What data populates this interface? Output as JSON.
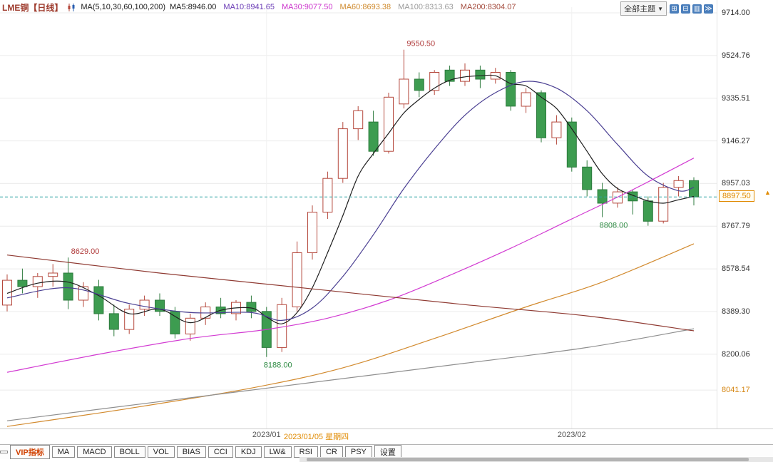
{
  "header": {
    "symbol": "LME铜【日线】",
    "ma_group": "MA(5,10,30,60,100,200)",
    "ma_items": [
      {
        "text": "MA5:8946.00",
        "color": "#1a1a1a"
      },
      {
        "text": "MA10:8941.65",
        "color": "#6a3bb5"
      },
      {
        "text": "MA30:9077.50",
        "color": "#cc33cc"
      },
      {
        "text": "MA60:8693.38",
        "color": "#cf8a2d"
      },
      {
        "text": "MA100:8313.63",
        "color": "#9b9b9b"
      },
      {
        "text": "MA200:8304.07",
        "color": "#a34a3c"
      }
    ],
    "theme_dropdown": {
      "label": "全部主题",
      "caret": "▼"
    },
    "window_icons": [
      {
        "name": "split-grid-icon",
        "glyph": "⊞"
      },
      {
        "name": "split-rows-icon",
        "glyph": "⊟"
      },
      {
        "name": "panel-layout-icon",
        "glyph": "▥"
      },
      {
        "name": "fast-forward-icon",
        "glyph": "≫"
      }
    ]
  },
  "y_axis": {
    "labels": [
      {
        "text": "9714.00",
        "price": 9714.0,
        "color": "#333333"
      },
      {
        "text": "9524.76",
        "price": 9524.76,
        "color": "#333333"
      },
      {
        "text": "9335.51",
        "price": 9335.51,
        "color": "#333333"
      },
      {
        "text": "9146.27",
        "price": 9146.27,
        "color": "#333333"
      },
      {
        "text": "8957.03",
        "price": 8957.03,
        "color": "#333333"
      },
      {
        "text": "8767.79",
        "price": 8767.79,
        "color": "#333333"
      },
      {
        "text": "8578.54",
        "price": 8578.54,
        "color": "#333333"
      },
      {
        "text": "8389.30",
        "price": 8389.3,
        "color": "#333333"
      },
      {
        "text": "8200.06",
        "price": 8200.06,
        "color": "#333333"
      },
      {
        "text": "8041.17",
        "price": 8041.17,
        "color": "#d58512"
      }
    ]
  },
  "x_axis": {
    "ticks": [
      {
        "text": "2023/01",
        "index": 17
      },
      {
        "text": "2023/02",
        "index": 37
      }
    ],
    "highlight": {
      "text": "2023/01/05 星期四",
      "x": 398
    }
  },
  "price_line": {
    "price": 8897.5,
    "tag": "8897.50",
    "marker": "▲",
    "line_color": "#2fa3a3",
    "tag_color": "#e08a00"
  },
  "annotations": [
    {
      "text": "9550.50",
      "index": 26,
      "price": 9550.5,
      "position": "above",
      "color": "#b03a3a"
    },
    {
      "text": "8629.00",
      "index": 4,
      "price": 8629.0,
      "position": "above",
      "color": "#b03a3a"
    },
    {
      "text": "8808.00",
      "index": 39,
      "price": 8808.0,
      "position": "below",
      "color": "#2e8b43"
    },
    {
      "text": "8188.00",
      "index": 17,
      "price": 8188.0,
      "position": "below",
      "color": "#2e8b43"
    }
  ],
  "footer": {
    "tabs": [
      {
        "text": "VIP指标",
        "color": "#d04000",
        "active": true
      },
      {
        "text": "MA",
        "color": "#222222"
      },
      {
        "text": "MACD",
        "color": "#222222"
      },
      {
        "text": "BOLL",
        "color": "#222222"
      },
      {
        "text": "VOL",
        "color": "#222222"
      },
      {
        "text": "BIAS",
        "color": "#222222"
      },
      {
        "text": "CCI",
        "color": "#222222"
      },
      {
        "text": "KDJ",
        "color": "#222222"
      },
      {
        "text": "LW&",
        "color": "#222222"
      },
      {
        "text": "RSI",
        "color": "#222222"
      },
      {
        "text": "CR",
        "color": "#222222"
      },
      {
        "text": "PSY",
        "color": "#222222"
      },
      {
        "text": "设置",
        "color": "#222222"
      }
    ]
  },
  "chart_data": {
    "type": "candlestick",
    "title": "LME铜 日线",
    "ylim": [
      7850,
      9760
    ],
    "grid": true,
    "up_style": {
      "fill": "#ffffff",
      "stroke": "#b5483c"
    },
    "down_style": {
      "fill": "#3d9c50",
      "stroke": "#2c7a3c"
    },
    "ohlc_note": "arrays are [open, high, low, close]",
    "ohlc": [
      [
        8418,
        8554,
        8390,
        8528
      ],
      [
        8528,
        8580,
        8470,
        8500
      ],
      [
        8500,
        8560,
        8450,
        8545
      ],
      [
        8545,
        8600,
        8500,
        8560
      ],
      [
        8560,
        8629,
        8400,
        8440
      ],
      [
        8440,
        8520,
        8410,
        8500
      ],
      [
        8500,
        8530,
        8350,
        8380
      ],
      [
        8380,
        8420,
        8280,
        8310
      ],
      [
        8310,
        8420,
        8290,
        8400
      ],
      [
        8400,
        8460,
        8370,
        8440
      ],
      [
        8440,
        8470,
        8370,
        8390
      ],
      [
        8390,
        8410,
        8270,
        8290
      ],
      [
        8290,
        8380,
        8260,
        8360
      ],
      [
        8360,
        8430,
        8330,
        8410
      ],
      [
        8410,
        8450,
        8360,
        8380
      ],
      [
        8380,
        8440,
        8350,
        8430
      ],
      [
        8430,
        8460,
        8360,
        8390
      ],
      [
        8390,
        8410,
        8188,
        8230
      ],
      [
        8230,
        8450,
        8210,
        8420
      ],
      [
        8410,
        8700,
        8390,
        8650
      ],
      [
        8650,
        8860,
        8620,
        8830
      ],
      [
        8830,
        9010,
        8800,
        8980
      ],
      [
        8980,
        9230,
        8960,
        9200
      ],
      [
        9200,
        9300,
        9150,
        9280
      ],
      [
        9230,
        9280,
        9080,
        9100
      ],
      [
        9100,
        9360,
        9090,
        9340
      ],
      [
        9310,
        9550.5,
        9290,
        9420
      ],
      [
        9420,
        9450,
        9340,
        9370
      ],
      [
        9370,
        9460,
        9350,
        9450
      ],
      [
        9460,
        9480,
        9390,
        9410
      ],
      [
        9410,
        9490,
        9390,
        9460
      ],
      [
        9460,
        9480,
        9380,
        9420
      ],
      [
        9420,
        9470,
        9400,
        9450
      ],
      [
        9450,
        9460,
        9280,
        9300
      ],
      [
        9300,
        9380,
        9270,
        9360
      ],
      [
        9360,
        9370,
        9140,
        9160
      ],
      [
        9160,
        9260,
        9130,
        9230
      ],
      [
        9230,
        9250,
        9010,
        9030
      ],
      [
        9030,
        9060,
        8900,
        8930
      ],
      [
        8930,
        8960,
        8808,
        8870
      ],
      [
        8870,
        8940,
        8850,
        8920
      ],
      [
        8920,
        8930,
        8820,
        8880
      ],
      [
        8880,
        8900,
        8770,
        8790
      ],
      [
        8790,
        8960,
        8780,
        8940
      ],
      [
        8940,
        8990,
        8900,
        8970
      ],
      [
        8970,
        8985,
        8860,
        8897.5
      ]
    ],
    "moving_averages": [
      {
        "name": "MA5",
        "value": 8946.0,
        "color": "#1f1f1f",
        "points": [
          [
            0,
            8470
          ],
          [
            2,
            8515
          ],
          [
            4,
            8520
          ],
          [
            6,
            8460
          ],
          [
            8,
            8380
          ],
          [
            10,
            8400
          ],
          [
            12,
            8340
          ],
          [
            14,
            8395
          ],
          [
            16,
            8405
          ],
          [
            17,
            8365
          ],
          [
            18,
            8335
          ],
          [
            19,
            8385
          ],
          [
            20,
            8495
          ],
          [
            21,
            8650
          ],
          [
            22,
            8815
          ],
          [
            23,
            8990
          ],
          [
            24,
            9090
          ],
          [
            25,
            9180
          ],
          [
            26,
            9270
          ],
          [
            27,
            9330
          ],
          [
            28,
            9380
          ],
          [
            29,
            9415
          ],
          [
            30,
            9430
          ],
          [
            31,
            9435
          ],
          [
            32,
            9435
          ],
          [
            33,
            9400
          ],
          [
            34,
            9390
          ],
          [
            35,
            9340
          ],
          [
            36,
            9290
          ],
          [
            37,
            9200
          ],
          [
            38,
            9100
          ],
          [
            39,
            9000
          ],
          [
            40,
            8935
          ],
          [
            41,
            8905
          ],
          [
            42,
            8880
          ],
          [
            43,
            8870
          ],
          [
            44,
            8885
          ],
          [
            45,
            8900
          ]
        ]
      },
      {
        "name": "MA10",
        "value": 8941.65,
        "color": "#4a3f92",
        "points": [
          [
            0,
            8450
          ],
          [
            4,
            8495
          ],
          [
            8,
            8425
          ],
          [
            12,
            8385
          ],
          [
            16,
            8385
          ],
          [
            18,
            8350
          ],
          [
            20,
            8405
          ],
          [
            22,
            8545
          ],
          [
            24,
            8730
          ],
          [
            26,
            8935
          ],
          [
            28,
            9110
          ],
          [
            30,
            9260
          ],
          [
            32,
            9360
          ],
          [
            34,
            9410
          ],
          [
            36,
            9380
          ],
          [
            38,
            9280
          ],
          [
            40,
            9130
          ],
          [
            42,
            8990
          ],
          [
            44,
            8925
          ],
          [
            45,
            8940
          ]
        ]
      },
      {
        "name": "MA30",
        "value": 9077.5,
        "color": "#d23bd2",
        "points": [
          [
            0,
            8120
          ],
          [
            6,
            8200
          ],
          [
            12,
            8270
          ],
          [
            17,
            8310
          ],
          [
            21,
            8360
          ],
          [
            25,
            8440
          ],
          [
            29,
            8550
          ],
          [
            33,
            8670
          ],
          [
            37,
            8800
          ],
          [
            41,
            8930
          ],
          [
            45,
            9070
          ]
        ]
      },
      {
        "name": "MA60",
        "value": 8693.38,
        "color": "#d28a2e",
        "points": [
          [
            0,
            7880
          ],
          [
            8,
            7960
          ],
          [
            16,
            8050
          ],
          [
            22,
            8140
          ],
          [
            28,
            8270
          ],
          [
            34,
            8410
          ],
          [
            39,
            8520
          ],
          [
            45,
            8690
          ]
        ]
      },
      {
        "name": "MA100",
        "value": 8313.63,
        "color": "#8f8f8f",
        "points": [
          [
            0,
            7905
          ],
          [
            10,
            7990
          ],
          [
            20,
            8075
          ],
          [
            30,
            8160
          ],
          [
            38,
            8230
          ],
          [
            45,
            8313
          ]
        ]
      },
      {
        "name": "MA200",
        "value": 8304.07,
        "color": "#8f3a32",
        "points": [
          [
            0,
            8640
          ],
          [
            10,
            8560
          ],
          [
            20,
            8490
          ],
          [
            30,
            8420
          ],
          [
            38,
            8370
          ],
          [
            45,
            8304
          ]
        ]
      }
    ]
  }
}
